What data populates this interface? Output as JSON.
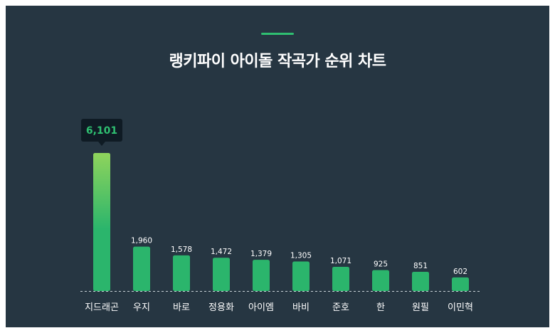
{
  "header": {
    "title": "랭키파이 아이돌 작곡가 순위 차트"
  },
  "colors": {
    "background": "#263642",
    "accent": "#2fbf71",
    "bar": "#2bb56c",
    "bar_highlight_top": "#8fd45c",
    "tooltip_bg": "#0f1b24"
  },
  "chart_data": {
    "type": "bar",
    "title": "랭키파이 아이돌 작곡가 순위 차트",
    "categories": [
      "지드래곤",
      "우지",
      "바로",
      "정용화",
      "아이엠",
      "바비",
      "준호",
      "한",
      "원필",
      "이민혁"
    ],
    "values": [
      6101,
      1960,
      1578,
      1472,
      1379,
      1305,
      1071,
      925,
      851,
      602
    ],
    "value_labels": [
      "6,101",
      "1,960",
      "1,578",
      "1,472",
      "1,379",
      "1,305",
      "1,071",
      "925",
      "851",
      "602"
    ],
    "highlight_index": 0,
    "ylim": [
      0,
      6101
    ],
    "grid": false,
    "baseline": "dashed"
  }
}
